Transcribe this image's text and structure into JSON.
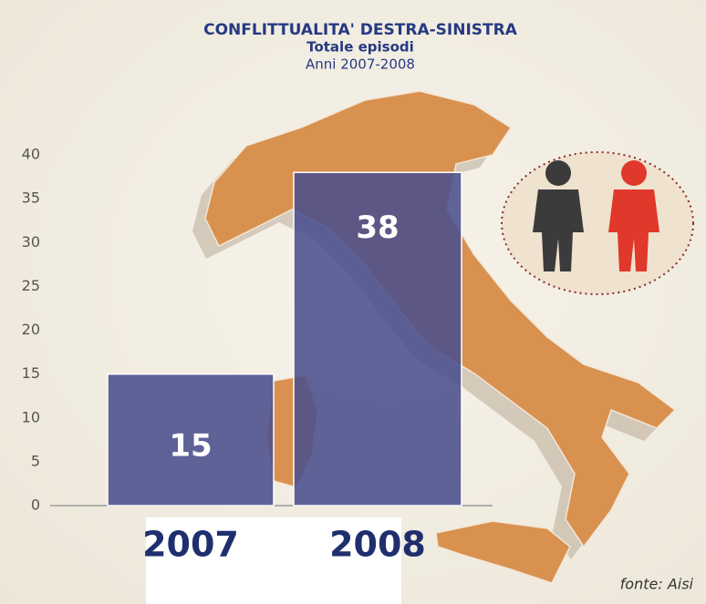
{
  "chart_data": {
    "type": "bar",
    "title": "CONFLITTUALITA' DESTRA-SINISTRA",
    "subtitle": "Totale episodi",
    "period": "Anni 2007-2008",
    "categories": [
      "2007",
      "2008"
    ],
    "values": [
      15,
      38
    ],
    "color": "#4a4f8c",
    "ylim": [
      0,
      40
    ],
    "yticks": [
      0,
      5,
      10,
      15,
      20,
      25,
      30,
      35,
      40
    ],
    "source": "fonte: Aisi"
  }
}
